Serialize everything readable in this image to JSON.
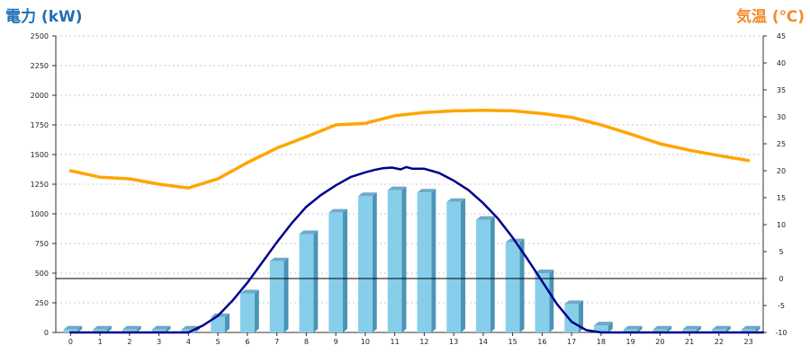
{
  "chart_data": {
    "type": "bar",
    "title": "",
    "ylabel": "電力 (kW)",
    "y2label": "気温 (℃)",
    "ylim": [
      0,
      2500
    ],
    "y2lim": [
      -10,
      45
    ],
    "yticks": [
      0,
      250,
      500,
      750,
      1000,
      1250,
      1500,
      1750,
      2000,
      2250,
      2500
    ],
    "y2ticks": [
      -10,
      -5,
      0,
      5,
      10,
      15,
      20,
      25,
      30,
      35,
      40,
      45
    ],
    "categories": [
      "0",
      "1",
      "2",
      "3",
      "4",
      "5",
      "6",
      "7",
      "8",
      "9",
      "10",
      "11",
      "12",
      "13",
      "14",
      "15",
      "16",
      "17",
      "18",
      "19",
      "20",
      "21",
      "22",
      "23"
    ],
    "grid": true,
    "reference_line_y2": 0,
    "series": [
      {
        "kind": "bar",
        "axis": "left",
        "color": "#87CEEB",
        "values": [
          25,
          25,
          25,
          25,
          25,
          130,
          330,
          600,
          830,
          1010,
          1150,
          1200,
          1180,
          1100,
          950,
          760,
          500,
          240,
          60,
          25,
          25,
          25,
          25,
          25
        ]
      },
      {
        "kind": "line",
        "axis": "left",
        "color": "#00008B",
        "x": [
          0,
          4,
          4.5,
          5,
          5.5,
          6,
          6.5,
          7,
          7.5,
          8,
          8.5,
          9,
          9.5,
          10,
          10.3,
          10.6,
          10.9,
          11.2,
          11.4,
          11.6,
          12,
          12.5,
          13,
          13.5,
          14,
          14.5,
          15,
          15.5,
          16,
          16.5,
          17,
          17.5,
          18,
          18.5,
          19,
          23.5
        ],
        "values": [
          0,
          0,
          60,
          140,
          270,
          420,
          590,
          760,
          920,
          1060,
          1160,
          1240,
          1310,
          1350,
          1370,
          1385,
          1390,
          1375,
          1395,
          1380,
          1380,
          1345,
          1280,
          1200,
          1090,
          960,
          800,
          620,
          430,
          240,
          90,
          20,
          0,
          0,
          0,
          0
        ]
      },
      {
        "kind": "line",
        "axis": "right",
        "color": "#FFA500",
        "x": [
          0,
          1,
          2,
          3,
          4,
          5,
          6,
          7,
          8,
          9,
          10,
          11,
          12,
          13,
          14,
          15,
          16,
          17,
          18,
          19,
          20,
          21,
          22,
          23
        ],
        "values": [
          20,
          18.8,
          18.5,
          17.5,
          16.8,
          18.5,
          21.5,
          24.2,
          26.3,
          28.5,
          28.8,
          30.2,
          30.8,
          31.1,
          31.2,
          31.1,
          30.6,
          29.9,
          28.5,
          26.8,
          25,
          23.8,
          22.8,
          21.9
        ]
      }
    ]
  }
}
